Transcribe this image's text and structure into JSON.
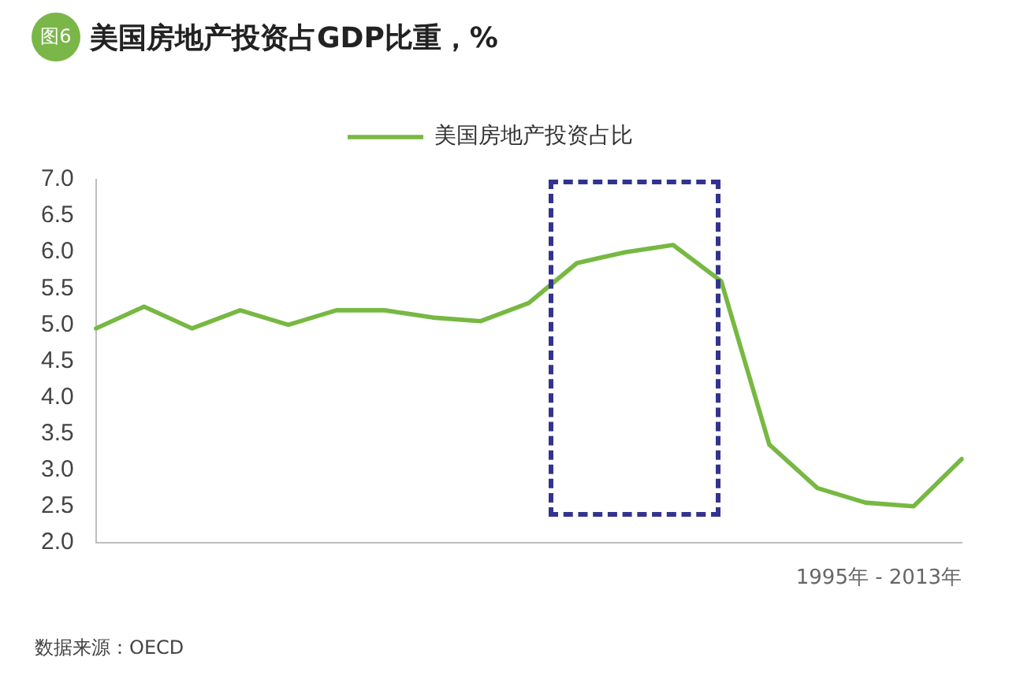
{
  "chart_data": {
    "type": "line",
    "title": "美国房地产投资占GDP比重，%",
    "xlabel": "1995年 - 2013年",
    "annotations": [
      "图6",
      "数据来源：OECD"
    ],
    "categories": [
      null,
      null,
      null,
      null,
      null,
      null,
      null,
      null,
      null,
      null,
      null,
      null,
      null,
      null,
      null,
      null,
      null,
      null,
      null
    ],
    "series": [
      {
        "name": "美国房地产投资占比",
        "color": "#77b843",
        "values": [
          4.95,
          5.25,
          4.95,
          5.2,
          5.0,
          5.2,
          5.2,
          5.1,
          5.05,
          5.3,
          5.85,
          6.0,
          6.1,
          5.6,
          3.35,
          2.75,
          2.55,
          2.5,
          3.15
        ]
      }
    ],
    "ylim": [
      2,
      7
    ],
    "yticks": [
      {
        "value": 2,
        "label": "2.0"
      },
      {
        "value": 2.5,
        "label": "2.5"
      },
      {
        "value": 3,
        "label": "3.0"
      },
      {
        "value": 3.5,
        "label": "3.5"
      },
      {
        "value": 4,
        "label": "4.0"
      },
      {
        "value": 4.5,
        "label": "4.5"
      },
      {
        "value": 5,
        "label": "5.0"
      },
      {
        "value": 5.5,
        "label": "5.5"
      },
      {
        "value": 6,
        "label": "6.0"
      },
      {
        "value": 6.5,
        "label": "6.5"
      },
      {
        "value": 7,
        "label": "7.0"
      }
    ],
    "legend": "top",
    "marker": "none",
    "tick_labels": "y"
  }
}
